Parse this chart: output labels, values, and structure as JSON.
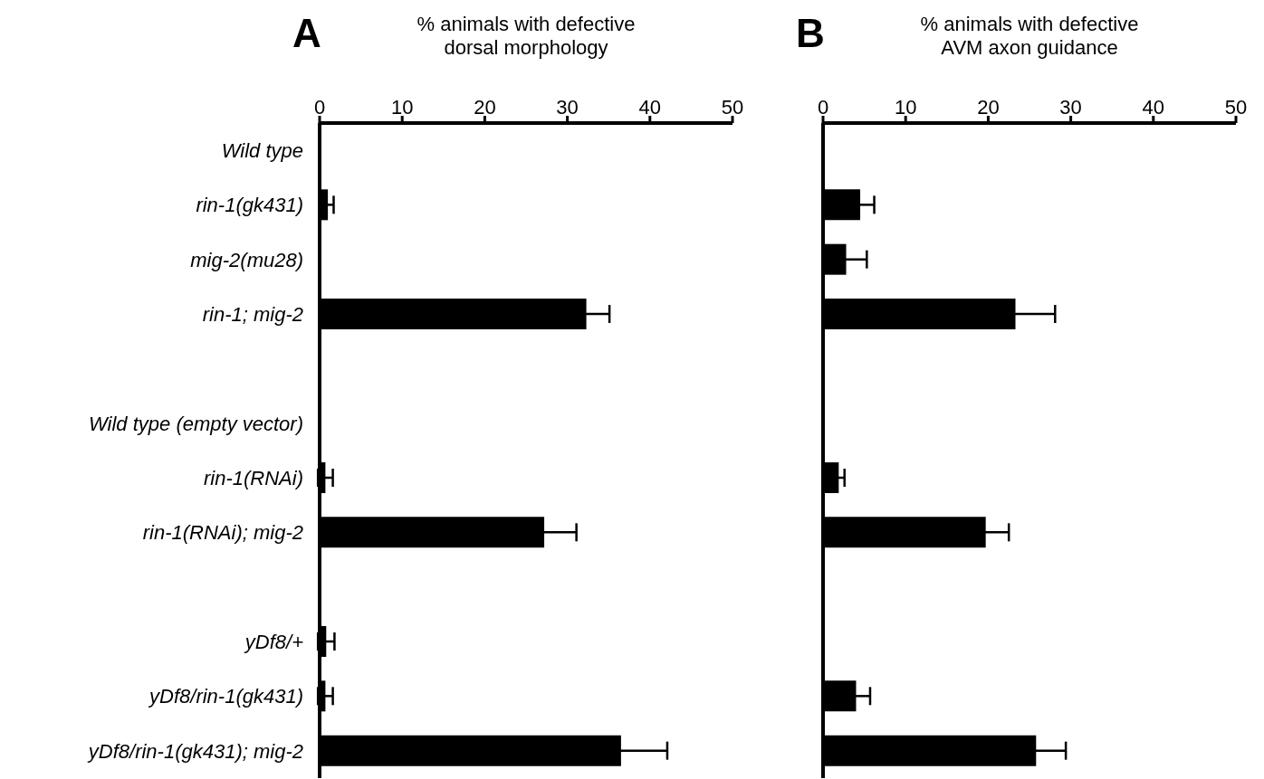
{
  "chart_data": [
    {
      "type": "bar",
      "orientation": "horizontal",
      "title": "A",
      "xlabel": "% animals with defective dorsal morphology",
      "categories": [
        "Wild type",
        "rin-1(gk431)",
        "mig-2(mu28)",
        "rin-1; mig-2",
        null,
        "Wild type (empty vector)",
        "rin-1(RNAi)",
        "rin-1(RNAi); mig-2",
        null,
        "yDf8/+",
        "yDf8/rin-1(gk431)",
        "yDf8/rin-1(gk431); mig-2"
      ],
      "values": [
        0,
        1,
        0,
        32.3,
        null,
        0,
        0.7,
        27.2,
        null,
        0.8,
        0.7,
        36.5
      ],
      "errors": [
        null,
        0.7,
        null,
        2.8,
        null,
        null,
        0.9,
        3.9,
        null,
        1.0,
        0.9,
        5.6
      ],
      "color": "#000000",
      "xlim": [
        0,
        50
      ],
      "xticks": [
        0,
        10,
        20,
        30,
        40,
        50
      ]
    },
    {
      "type": "bar",
      "orientation": "horizontal",
      "title": "B",
      "xlabel": "% animals with defective AVM axon guidance",
      "categories": [
        null,
        null,
        null,
        null,
        null,
        null,
        null,
        null,
        null,
        null,
        null,
        null
      ],
      "values": [
        0,
        4.5,
        2.8,
        23.3,
        null,
        0,
        1.9,
        19.7,
        null,
        0,
        4.0,
        25.8
      ],
      "errors": [
        null,
        1.7,
        2.5,
        4.8,
        null,
        null,
        0.7,
        2.8,
        null,
        null,
        1.7,
        3.6
      ],
      "color": "#000000",
      "xlim": [
        0,
        50
      ],
      "xticks": [
        0,
        10,
        20,
        30,
        40,
        50
      ]
    }
  ]
}
